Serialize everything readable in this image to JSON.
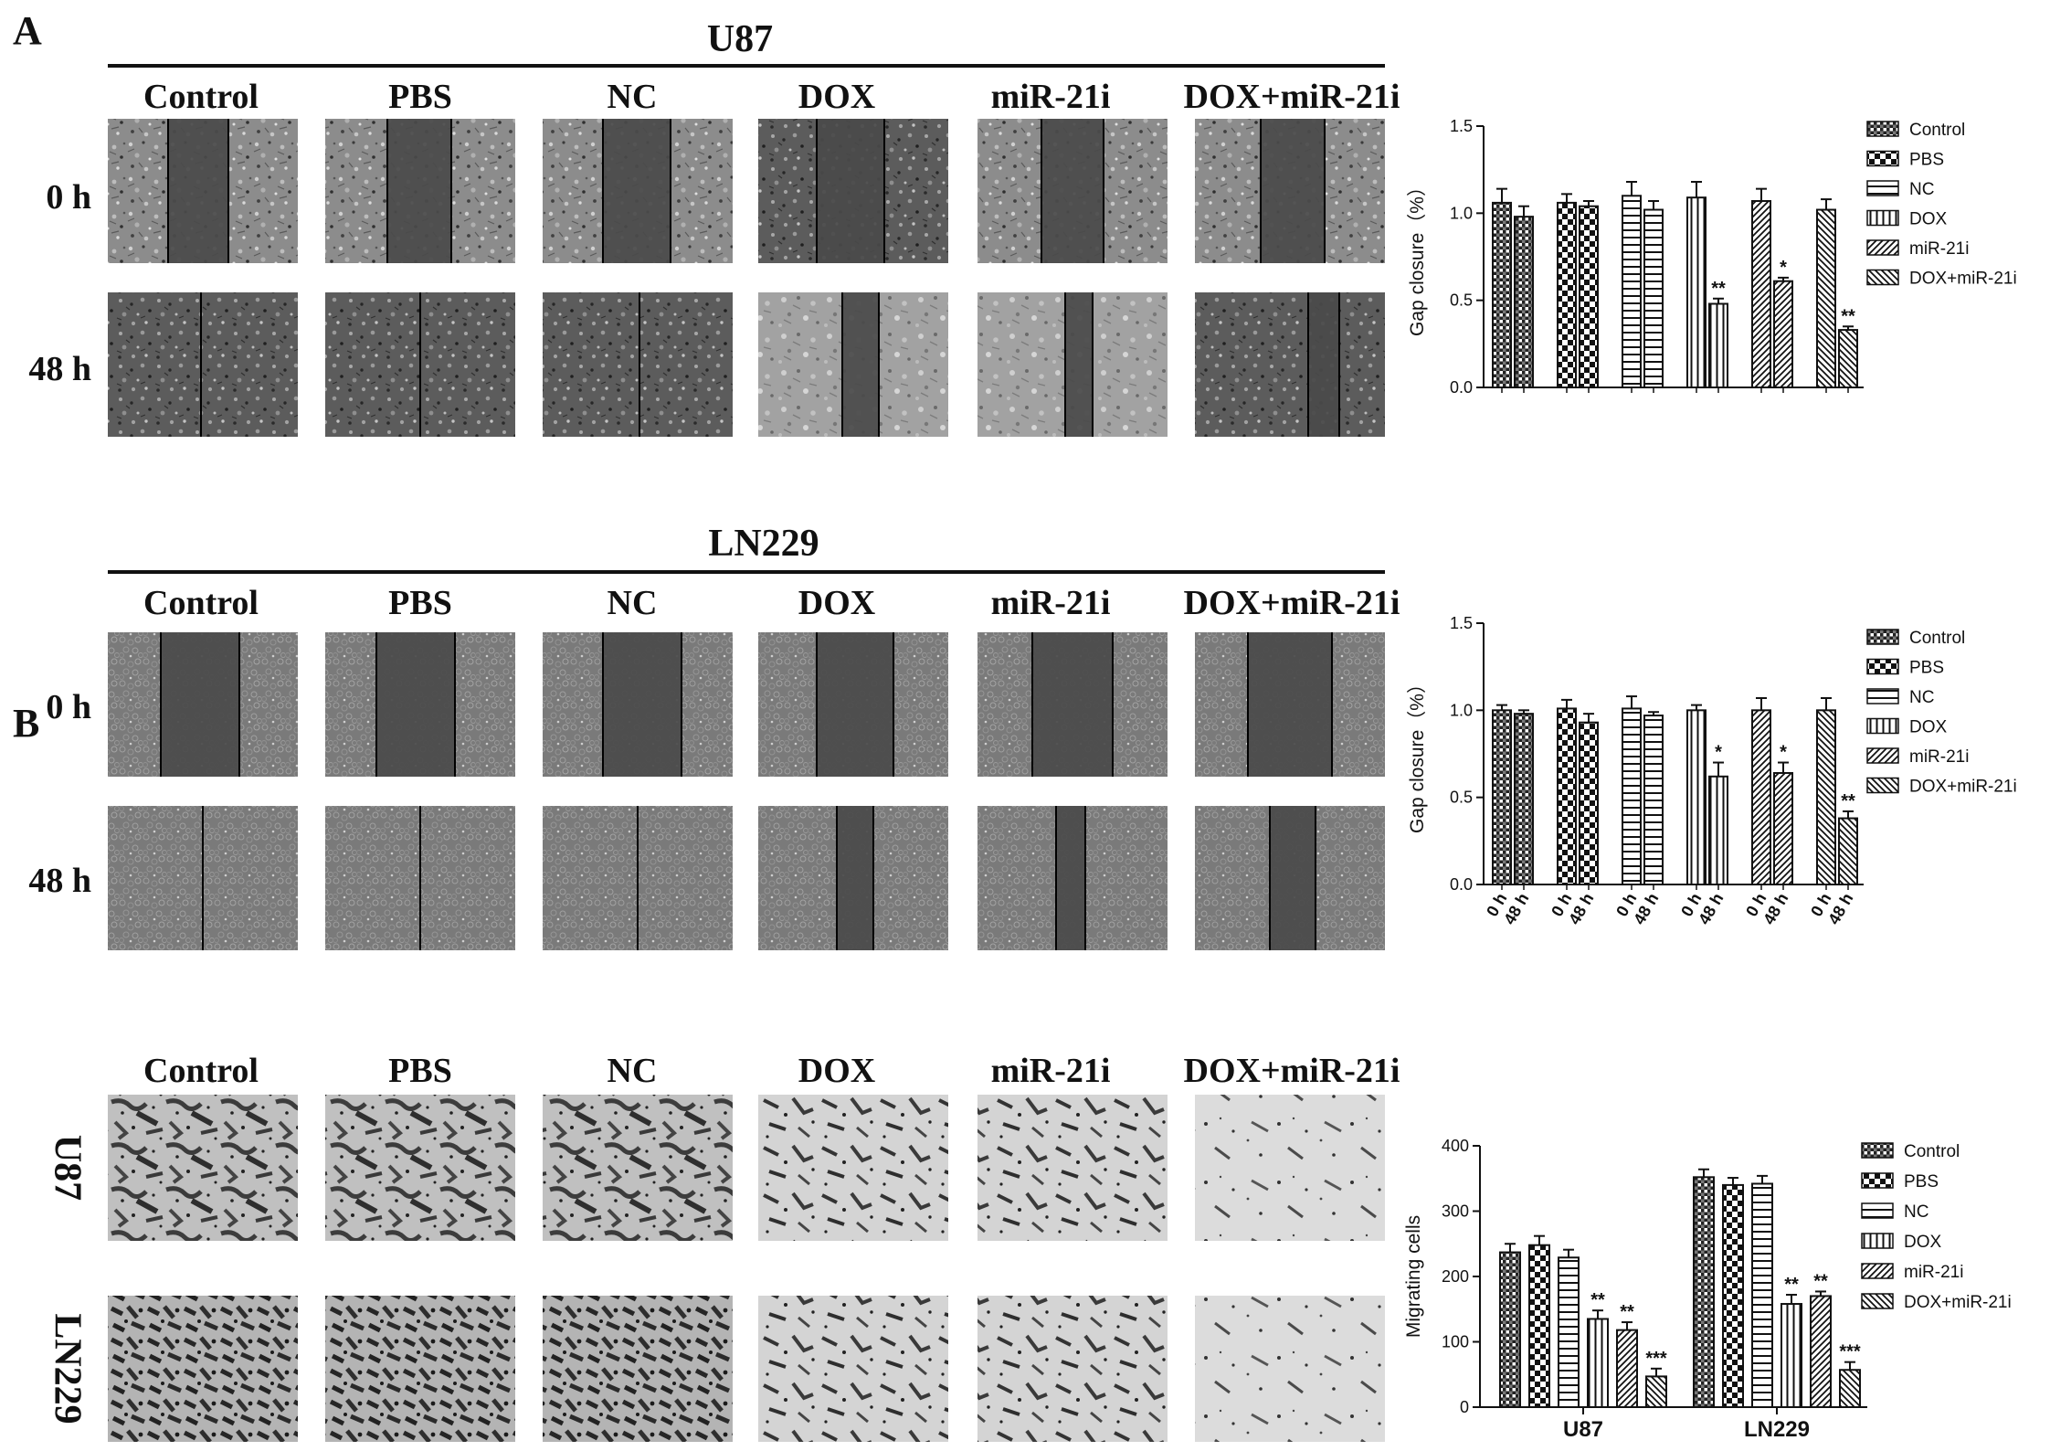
{
  "figure": {
    "panel_a": "A",
    "panel_b": "B",
    "a_u87_title": "U87",
    "a_ln229_title": "LN229",
    "a_columns": [
      "Control",
      "PBS",
      "NC",
      "DOX",
      "miR-21i",
      "DOX+miR-21i"
    ],
    "a_rows": [
      "0 h",
      "48 h"
    ],
    "b_columns": [
      "Control",
      "PBS",
      "NC",
      "DOX",
      "miR-21i",
      "DOX+miR-21i"
    ],
    "b_rows": [
      "U87",
      "LN229"
    ]
  },
  "chart_data": [
    {
      "type": "bar",
      "ylabel": "Gap closure（%）",
      "ylim": [
        0,
        1.5
      ],
      "yticks": [
        "0.0",
        "0.5",
        "1.0",
        "1.5"
      ],
      "groups": [
        "Control",
        "PBS",
        "NC",
        "DOX",
        "miR-21i",
        "DOX+miR-21i"
      ],
      "categories": [
        "0 h",
        "48 h"
      ],
      "values": [
        [
          1.06,
          0.98
        ],
        [
          1.06,
          1.04
        ],
        [
          1.1,
          1.02
        ],
        [
          1.09,
          0.48
        ],
        [
          1.07,
          0.61
        ],
        [
          1.02,
          0.33
        ]
      ],
      "errors": [
        [
          0.08,
          0.06
        ],
        [
          0.05,
          0.03
        ],
        [
          0.08,
          0.05
        ],
        [
          0.09,
          0.03
        ],
        [
          0.07,
          0.02
        ],
        [
          0.06,
          0.02
        ]
      ],
      "significance": [
        [
          "",
          ""
        ],
        [
          "",
          ""
        ],
        [
          "",
          ""
        ],
        [
          "",
          "**"
        ],
        [
          "",
          "*"
        ],
        [
          "",
          "**"
        ]
      ],
      "legend": [
        "Control",
        "PBS",
        "NC",
        "DOX",
        "miR-21i",
        "DOX+miR-21i"
      ],
      "show_x_labels": false
    },
    {
      "type": "bar",
      "ylabel": "Gap closure（%）",
      "ylim": [
        0,
        1.5
      ],
      "yticks": [
        "0.0",
        "0.5",
        "1.0",
        "1.5"
      ],
      "groups": [
        "Control",
        "PBS",
        "NC",
        "DOX",
        "miR-21i",
        "DOX+miR-21i"
      ],
      "categories": [
        "0 h",
        "48 h"
      ],
      "values": [
        [
          1.0,
          0.98
        ],
        [
          1.01,
          0.93
        ],
        [
          1.01,
          0.97
        ],
        [
          1.0,
          0.62
        ],
        [
          1.0,
          0.64
        ],
        [
          1.0,
          0.38
        ]
      ],
      "errors": [
        [
          0.03,
          0.02
        ],
        [
          0.05,
          0.05
        ],
        [
          0.07,
          0.02
        ],
        [
          0.03,
          0.08
        ],
        [
          0.07,
          0.06
        ],
        [
          0.07,
          0.04
        ]
      ],
      "significance": [
        [
          "",
          ""
        ],
        [
          "",
          ""
        ],
        [
          "",
          ""
        ],
        [
          "",
          "*"
        ],
        [
          "",
          "*"
        ],
        [
          "",
          "**"
        ]
      ],
      "legend": [
        "Control",
        "PBS",
        "NC",
        "DOX",
        "miR-21i",
        "DOX+miR-21i"
      ],
      "show_x_labels": true
    },
    {
      "type": "bar",
      "ylabel": "Migrating cells",
      "ylim": [
        0,
        400
      ],
      "yticks": [
        "0",
        "100",
        "200",
        "300",
        "400"
      ],
      "categories": [
        "U87",
        "LN229"
      ],
      "series": [
        {
          "name": "Control",
          "values": [
            237,
            352
          ]
        },
        {
          "name": "PBS",
          "values": [
            248,
            340
          ]
        },
        {
          "name": "NC",
          "values": [
            229,
            342
          ]
        },
        {
          "name": "DOX",
          "values": [
            135,
            158
          ]
        },
        {
          "name": "miR-21i",
          "values": [
            118,
            170
          ]
        },
        {
          "name": "DOX+miR-21i",
          "values": [
            47,
            57
          ]
        }
      ],
      "errors": [
        [
          13,
          12
        ],
        [
          14,
          11
        ],
        [
          12,
          12
        ],
        [
          13,
          14
        ],
        [
          12,
          7
        ],
        [
          12,
          12
        ]
      ],
      "significance": [
        [
          "",
          ""
        ],
        [
          "",
          ""
        ],
        [
          "",
          ""
        ],
        [
          "**",
          "**"
        ],
        [
          "**",
          "**"
        ],
        [
          "***",
          "***"
        ]
      ],
      "legend": [
        "Control",
        "PBS",
        "NC",
        "DOX",
        "miR-21i",
        "DOX+miR-21i"
      ]
    }
  ],
  "colors": {
    "ink": "#111111",
    "micro_light": "#8a8a8a",
    "micro_dark": "#3a3a3a",
    "gap": "#444444",
    "transwell_bg": "#d8d8d8"
  }
}
